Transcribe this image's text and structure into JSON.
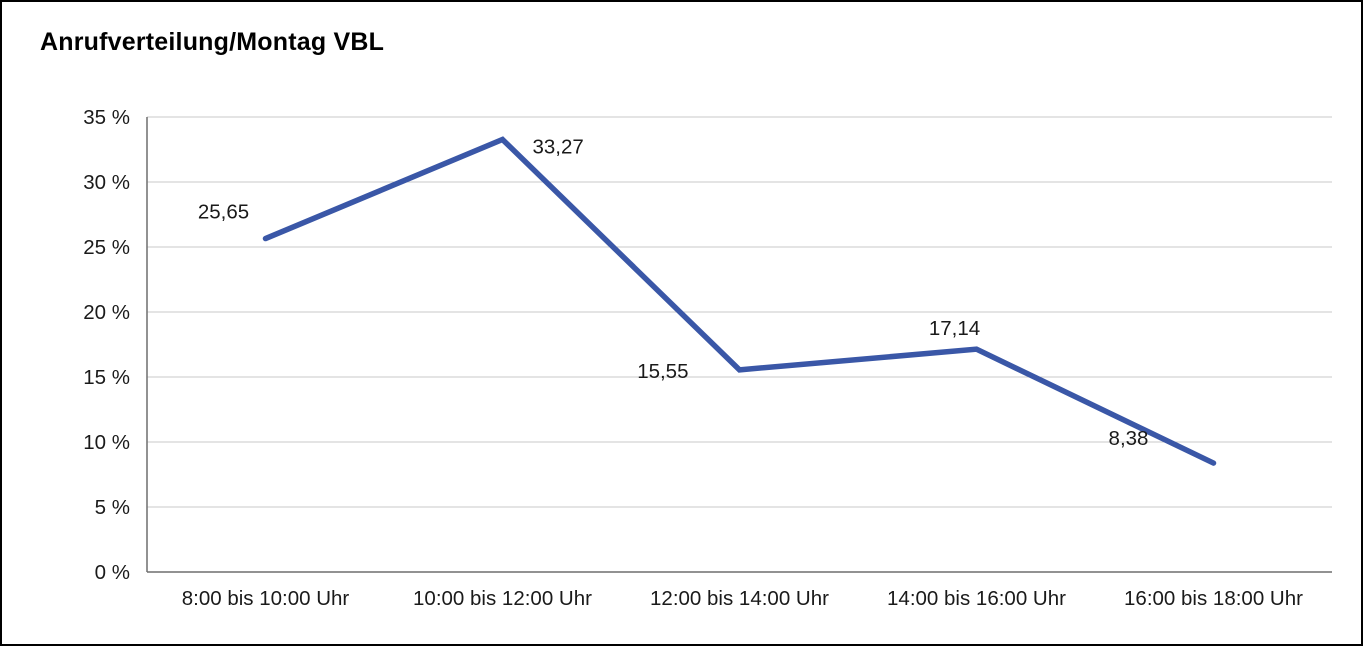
{
  "page": {
    "title": "Anrufverteilung/Montag VBL"
  },
  "chart_data": {
    "type": "line",
    "title": "Anrufverteilung/Montag VBL",
    "categories": [
      "8:00 bis 10:00 Uhr",
      "10:00 bis 12:00 Uhr",
      "12:00 bis 14:00 Uhr",
      "14:00 bis 16:00 Uhr",
      "16:00 bis 18:00 Uhr"
    ],
    "values": [
      25.65,
      33.27,
      15.55,
      17.14,
      8.38
    ],
    "value_labels": [
      "25,65",
      "33,27",
      "15,55",
      "17,14",
      "8,38"
    ],
    "xlabel": "",
    "ylabel": "",
    "ylim": [
      0,
      35
    ],
    "ytick_values": [
      0,
      5,
      10,
      15,
      20,
      25,
      30,
      35
    ],
    "ytick_labels": [
      "0 %",
      "5 %",
      "10 %",
      "15 %",
      "20 %",
      "25 %",
      "30 %",
      "35 %"
    ],
    "grid": true,
    "legend": false,
    "colors": {
      "line": "#3a57a7",
      "grid": "#c9c9c9",
      "axis": "#6f6f6f",
      "text": "#1a1a1a",
      "border": "#000000",
      "background": "#ffffff"
    }
  }
}
